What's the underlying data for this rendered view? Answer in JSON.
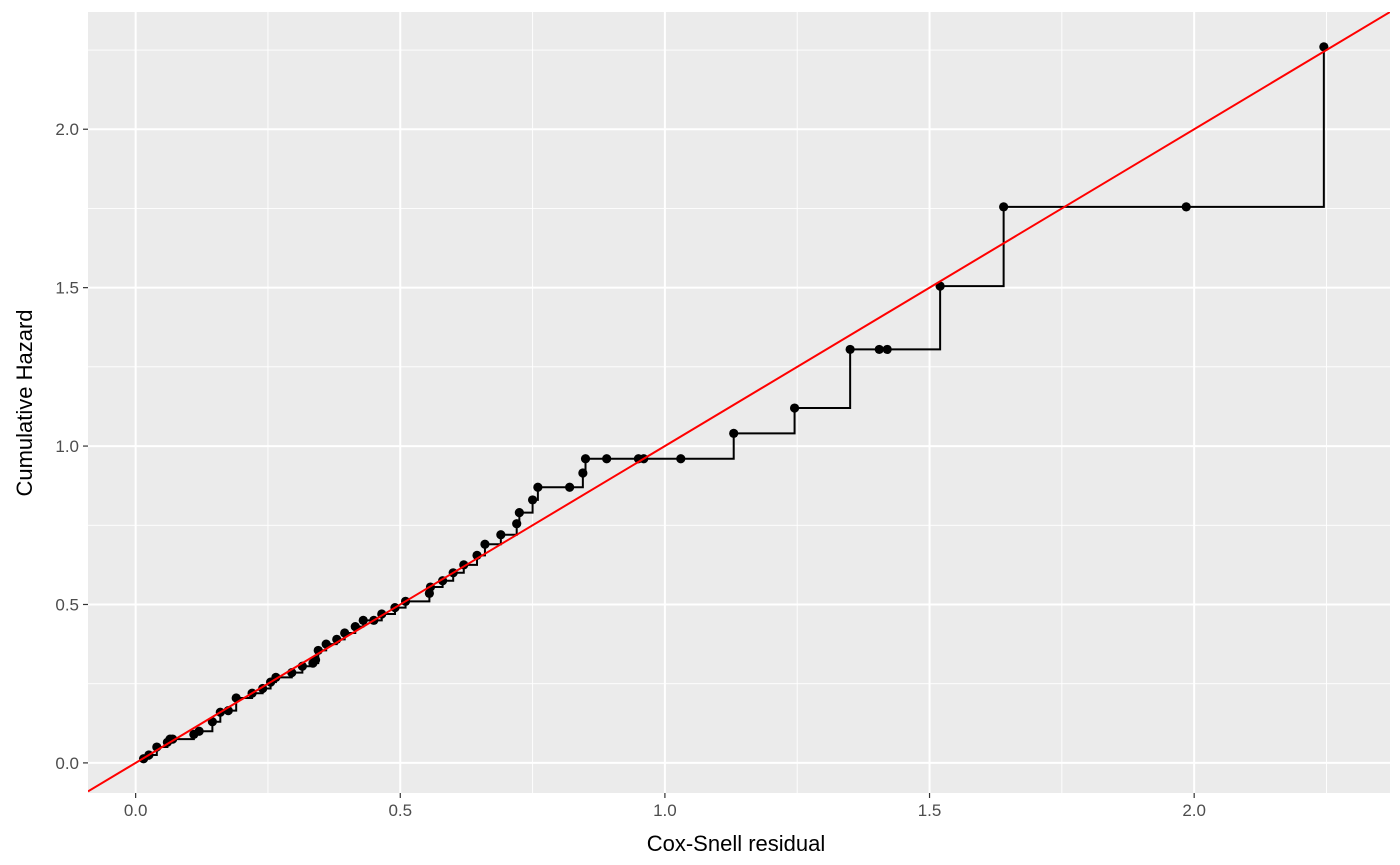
{
  "chart_data": {
    "type": "scatter",
    "title": "",
    "xlabel": "Cox-Snell residual",
    "ylabel": "Cumulative Hazard",
    "xlim": [
      -0.09,
      2.37
    ],
    "ylim": [
      -0.095,
      2.37
    ],
    "x_ticks": [
      0.0,
      0.5,
      1.0,
      1.5,
      2.0
    ],
    "x_tick_labels": [
      "0.0",
      "0.5",
      "1.0",
      "1.5",
      "2.0"
    ],
    "y_ticks": [
      0.0,
      0.5,
      1.0,
      1.5,
      2.0
    ],
    "y_tick_labels": [
      "0.0",
      "0.5",
      "1.0",
      "1.5",
      "2.0"
    ],
    "grid": true,
    "colors": {
      "panel": "#ebebeb",
      "grid": "#ffffff",
      "points": "#000000",
      "step": "#000000",
      "reference_line": "#ff0000"
    },
    "series": [
      {
        "name": "cumulative hazard (points)",
        "kind": "scatter",
        "x": [
          0.015,
          0.025,
          0.04,
          0.06,
          0.065,
          0.07,
          0.11,
          0.12,
          0.145,
          0.16,
          0.175,
          0.19,
          0.22,
          0.24,
          0.255,
          0.265,
          0.295,
          0.315,
          0.335,
          0.34,
          0.345,
          0.36,
          0.38,
          0.395,
          0.415,
          0.43,
          0.45,
          0.465,
          0.49,
          0.51,
          0.555,
          0.557,
          0.58,
          0.6,
          0.62,
          0.645,
          0.66,
          0.69,
          0.72,
          0.725,
          0.75,
          0.76,
          0.82,
          0.845,
          0.85,
          0.89,
          0.95,
          0.96,
          1.03,
          1.13,
          1.245,
          1.35,
          1.405,
          1.42,
          1.52,
          1.64,
          1.985,
          2.245
        ],
        "y": [
          0.013,
          0.025,
          0.05,
          0.065,
          0.075,
          0.075,
          0.09,
          0.1,
          0.13,
          0.16,
          0.165,
          0.205,
          0.22,
          0.235,
          0.255,
          0.27,
          0.285,
          0.305,
          0.315,
          0.325,
          0.355,
          0.375,
          0.39,
          0.41,
          0.43,
          0.45,
          0.45,
          0.47,
          0.49,
          0.51,
          0.535,
          0.555,
          0.575,
          0.6,
          0.625,
          0.655,
          0.69,
          0.72,
          0.755,
          0.79,
          0.83,
          0.87,
          0.87,
          0.915,
          0.96,
          0.96,
          0.96,
          0.96,
          0.96,
          1.04,
          1.12,
          1.305,
          1.305,
          1.305,
          1.505,
          1.755,
          1.755,
          2.26
        ]
      },
      {
        "name": "cumulative hazard (step)",
        "kind": "step",
        "x": [
          0.015,
          0.025,
          0.04,
          0.06,
          0.065,
          0.11,
          0.12,
          0.145,
          0.16,
          0.175,
          0.19,
          0.22,
          0.24,
          0.255,
          0.265,
          0.295,
          0.315,
          0.335,
          0.345,
          0.36,
          0.38,
          0.395,
          0.415,
          0.43,
          0.465,
          0.49,
          0.51,
          0.555,
          0.557,
          0.58,
          0.6,
          0.62,
          0.645,
          0.66,
          0.69,
          0.72,
          0.725,
          0.75,
          0.76,
          0.845,
          0.85,
          1.13,
          1.245,
          1.35,
          1.52,
          1.64,
          2.245
        ],
        "y": [
          0.013,
          0.025,
          0.05,
          0.065,
          0.075,
          0.09,
          0.1,
          0.13,
          0.16,
          0.165,
          0.205,
          0.22,
          0.235,
          0.255,
          0.27,
          0.285,
          0.305,
          0.315,
          0.355,
          0.375,
          0.39,
          0.41,
          0.43,
          0.45,
          0.47,
          0.49,
          0.51,
          0.535,
          0.555,
          0.575,
          0.6,
          0.625,
          0.655,
          0.69,
          0.72,
          0.755,
          0.79,
          0.83,
          0.87,
          0.915,
          0.96,
          1.04,
          1.12,
          1.305,
          1.505,
          1.755,
          2.26
        ]
      },
      {
        "name": "reference line y = x",
        "kind": "abline",
        "intercept": 0,
        "slope": 1
      }
    ]
  }
}
